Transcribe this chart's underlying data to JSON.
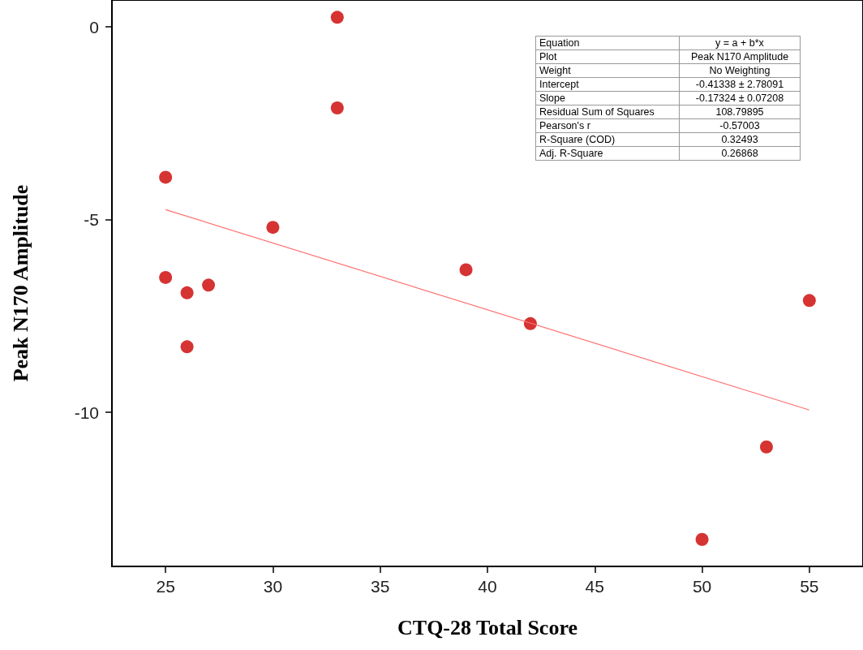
{
  "chart_data": {
    "type": "scatter",
    "xlabel": "CTQ-28 Total Score",
    "ylabel": "Peak N170 Amplitude",
    "xlim": [
      22.5,
      57.5
    ],
    "xticks": [
      25,
      30,
      35,
      40,
      45,
      50,
      55
    ],
    "ylim": [
      -14,
      0.7
    ],
    "yticks": [
      -10,
      -5,
      0
    ],
    "grid": false,
    "series": [
      {
        "color": "#cc0000",
        "marker": "circle",
        "x": [
          25,
          25,
          26,
          26,
          27,
          30,
          33,
          33,
          39,
          42,
          50,
          53,
          55
        ],
        "values": [
          -3.9,
          -6.5,
          -6.9,
          -8.3,
          -6.7,
          -5.2,
          0.25,
          -2.1,
          -6.3,
          -7.7,
          -13.3,
          -10.9,
          -7.1
        ]
      },
      {
        "type": "line",
        "color": "#ff7070",
        "marker": "none",
        "x": [
          25,
          55
        ],
        "values": [
          -4.74,
          -9.94
        ]
      }
    ],
    "annotations": [
      "Equation",
      "y = a + b*x",
      "Plot",
      "Peak N170 Amplitude",
      "Weight",
      "No Weighting",
      "Intercept",
      "-0.41338 ± 2.78091",
      "Slope",
      "-0.17324 ± 0.07208",
      "Residual Sum of Squares",
      "108.79895",
      "Pearson's r",
      "-0.57003",
      "R-Square (COD)",
      "0.32493",
      "Adj. R-Square",
      "0.26868"
    ]
  }
}
